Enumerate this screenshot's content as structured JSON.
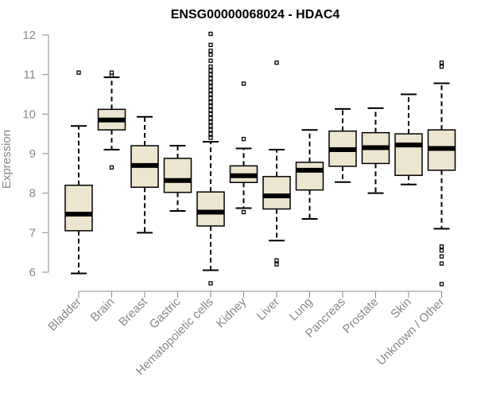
{
  "chart_data": {
    "type": "boxplot",
    "title": "ENSG00000068024 - HDAC4",
    "xlabel": "",
    "ylabel": "Expression",
    "ylim": [
      5.6,
      12.1
    ],
    "yticks": [
      6,
      7,
      8,
      9,
      10,
      11,
      12
    ],
    "categories": [
      "Bladder",
      "Brain",
      "Breast",
      "Gastric",
      "Hematopoietic cells",
      "Kidney",
      "Liver",
      "Lung",
      "Pancreas",
      "Prostate",
      "Skin",
      "Unknown / Other"
    ],
    "boxes": [
      {
        "min": 5.97,
        "q1": 7.05,
        "median": 7.47,
        "q3": 8.2,
        "max": 9.7,
        "outliers": [
          11.05
        ]
      },
      {
        "min": 9.1,
        "q1": 9.6,
        "median": 9.85,
        "q3": 10.12,
        "max": 10.93,
        "outliers": [
          8.65,
          11.05,
          10.97
        ]
      },
      {
        "min": 7.0,
        "q1": 8.15,
        "median": 8.7,
        "q3": 9.2,
        "max": 9.93,
        "outliers": []
      },
      {
        "min": 7.55,
        "q1": 8.02,
        "median": 8.32,
        "q3": 8.88,
        "max": 9.2,
        "outliers": []
      },
      {
        "min": 6.05,
        "q1": 7.17,
        "median": 7.52,
        "q3": 8.03,
        "max": 9.3,
        "outliers": [
          5.72,
          12.03,
          11.75,
          11.6,
          11.5,
          11.35,
          11.2,
          11.1,
          11.0,
          10.9,
          10.8,
          10.7,
          10.6,
          10.5,
          10.4,
          10.3,
          10.2,
          10.1,
          10.0,
          9.9,
          9.8,
          9.7,
          9.6,
          9.5,
          9.4
        ]
      },
      {
        "min": 7.62,
        "q1": 8.27,
        "median": 8.44,
        "q3": 8.69,
        "max": 9.13,
        "outliers": [
          10.77,
          9.37,
          7.52
        ]
      },
      {
        "min": 6.8,
        "q1": 7.6,
        "median": 7.93,
        "q3": 8.42,
        "max": 9.1,
        "outliers": [
          11.3,
          6.3,
          6.2
        ]
      },
      {
        "min": 7.35,
        "q1": 8.08,
        "median": 8.58,
        "q3": 8.78,
        "max": 9.6,
        "outliers": []
      },
      {
        "min": 8.28,
        "q1": 8.68,
        "median": 9.1,
        "q3": 9.57,
        "max": 10.13,
        "outliers": []
      },
      {
        "min": 8.0,
        "q1": 8.75,
        "median": 9.15,
        "q3": 9.53,
        "max": 10.15,
        "outliers": []
      },
      {
        "min": 8.22,
        "q1": 8.45,
        "median": 9.22,
        "q3": 9.5,
        "max": 10.5,
        "outliers": []
      },
      {
        "min": 7.1,
        "q1": 8.58,
        "median": 9.13,
        "q3": 9.6,
        "max": 10.78,
        "outliers": [
          11.3,
          11.2,
          6.65,
          6.55,
          6.4,
          6.22,
          5.7
        ]
      }
    ]
  }
}
